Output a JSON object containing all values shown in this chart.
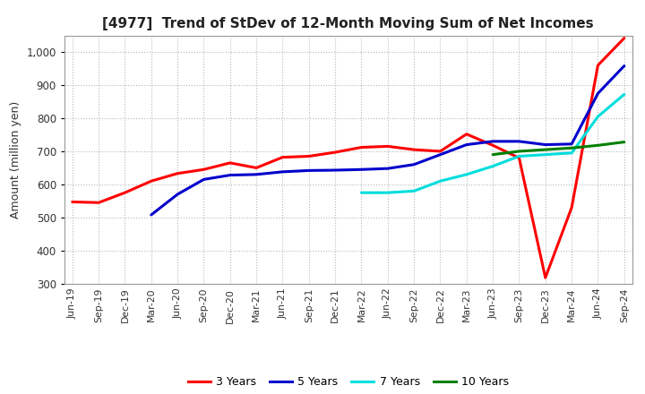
{
  "title": "[4977]  Trend of StDev of 12-Month Moving Sum of Net Incomes",
  "ylabel": "Amount (million yen)",
  "ylim": [
    300,
    1050
  ],
  "yticks": [
    300,
    400,
    500,
    600,
    700,
    800,
    900,
    1000
  ],
  "background_color": "#ffffff",
  "grid_color": "#b0b0b0",
  "series": {
    "3 Years": {
      "color": "#ff0000",
      "data": [
        [
          "Jun-19",
          547
        ],
        [
          "Sep-19",
          545
        ],
        [
          "Dec-19",
          575
        ],
        [
          "Mar-20",
          610
        ],
        [
          "Jun-20",
          633
        ],
        [
          "Sep-20",
          645
        ],
        [
          "Dec-20",
          665
        ],
        [
          "Mar-21",
          650
        ],
        [
          "Jun-21",
          682
        ],
        [
          "Sep-21",
          685
        ],
        [
          "Dec-21",
          697
        ],
        [
          "Mar-22",
          712
        ],
        [
          "Jun-22",
          715
        ],
        [
          "Sep-22",
          705
        ],
        [
          "Dec-22",
          700
        ],
        [
          "Mar-23",
          752
        ],
        [
          "Jun-23",
          718
        ],
        [
          "Sep-23",
          680
        ],
        [
          "Dec-23",
          318
        ],
        [
          "Mar-24",
          530
        ],
        [
          "Jun-24",
          960
        ],
        [
          "Sep-24",
          1042
        ]
      ]
    },
    "5 Years": {
      "color": "#0000cc",
      "data": [
        [
          "Mar-20",
          508
        ],
        [
          "Jun-20",
          570
        ],
        [
          "Sep-20",
          615
        ],
        [
          "Dec-20",
          628
        ],
        [
          "Mar-21",
          630
        ],
        [
          "Jun-21",
          638
        ],
        [
          "Sep-21",
          642
        ],
        [
          "Dec-21",
          643
        ],
        [
          "Mar-22",
          645
        ],
        [
          "Jun-22",
          648
        ],
        [
          "Sep-22",
          660
        ],
        [
          "Dec-22",
          690
        ],
        [
          "Mar-23",
          720
        ],
        [
          "Jun-23",
          730
        ],
        [
          "Sep-23",
          730
        ],
        [
          "Dec-23",
          720
        ],
        [
          "Mar-24",
          722
        ],
        [
          "Jun-24",
          875
        ],
        [
          "Sep-24",
          958
        ]
      ]
    },
    "7 Years": {
      "color": "#00dddd",
      "data": [
        [
          "Mar-22",
          575
        ],
        [
          "Jun-22",
          575
        ],
        [
          "Sep-22",
          580
        ],
        [
          "Dec-22",
          610
        ],
        [
          "Mar-23",
          630
        ],
        [
          "Jun-23",
          655
        ],
        [
          "Sep-23",
          685
        ],
        [
          "Dec-23",
          690
        ],
        [
          "Mar-24",
          695
        ],
        [
          "Jun-24",
          805
        ],
        [
          "Sep-24",
          872
        ]
      ]
    },
    "10 Years": {
      "color": "#008000",
      "data": [
        [
          "Jun-23",
          690
        ],
        [
          "Sep-23",
          700
        ],
        [
          "Dec-23",
          705
        ],
        [
          "Mar-24",
          710
        ],
        [
          "Jun-24",
          718
        ],
        [
          "Sep-24",
          728
        ]
      ]
    }
  },
  "xticks": [
    "Jun-19",
    "Sep-19",
    "Dec-19",
    "Mar-20",
    "Jun-20",
    "Sep-20",
    "Dec-20",
    "Mar-21",
    "Jun-21",
    "Sep-21",
    "Dec-21",
    "Mar-22",
    "Jun-22",
    "Sep-22",
    "Dec-22",
    "Mar-23",
    "Jun-23",
    "Sep-23",
    "Dec-23",
    "Mar-24",
    "Jun-24",
    "Sep-24"
  ],
  "legend": [
    {
      "label": "3 Years",
      "color": "#ff0000"
    },
    {
      "label": "5 Years",
      "color": "#0000cc"
    },
    {
      "label": "7 Years",
      "color": "#00dddd"
    },
    {
      "label": "10 Years",
      "color": "#008000"
    }
  ]
}
